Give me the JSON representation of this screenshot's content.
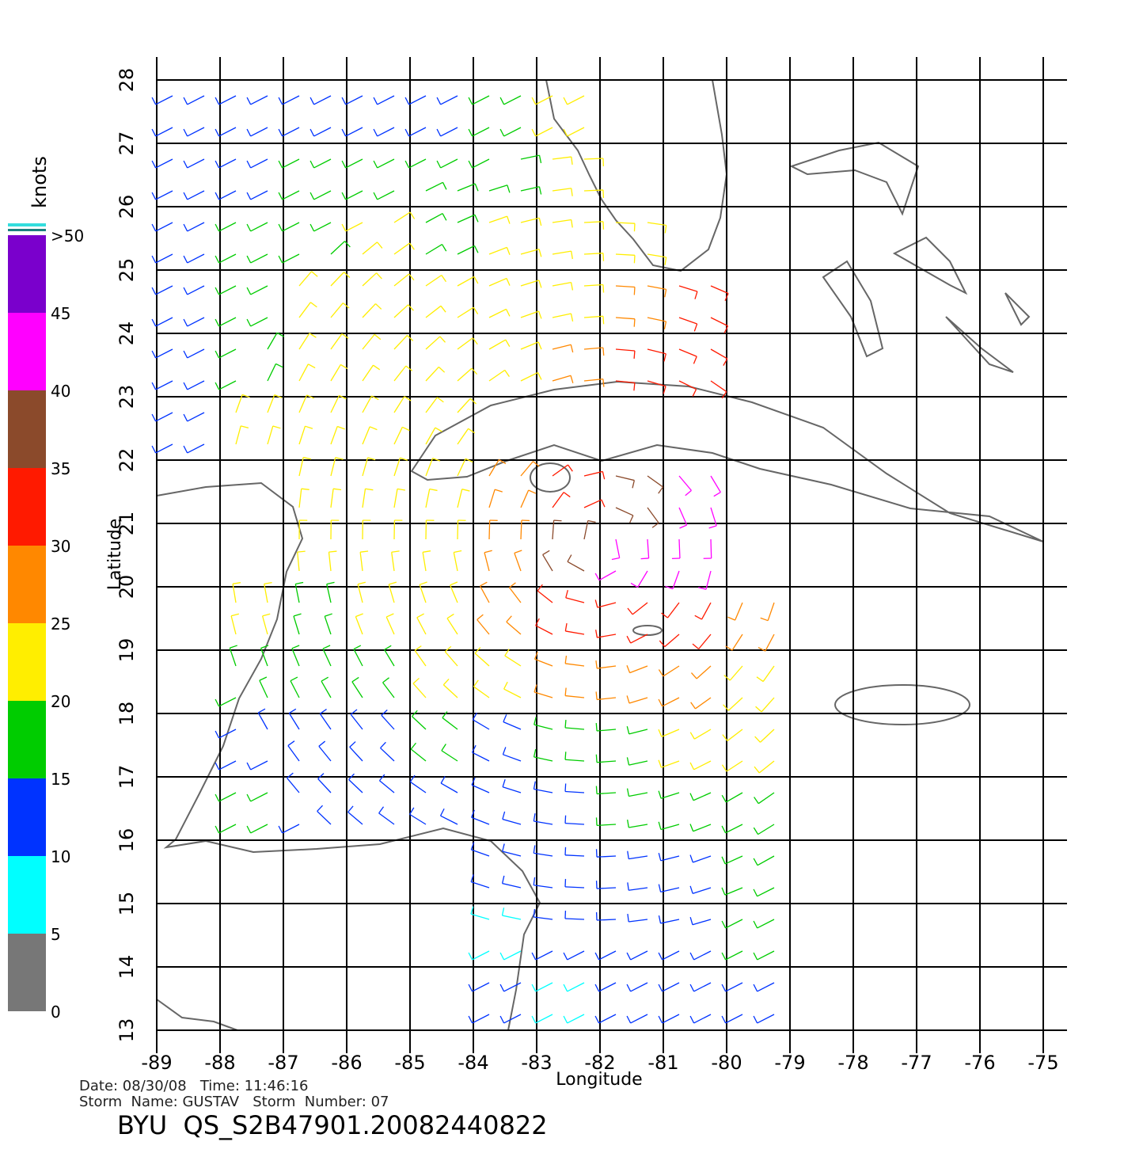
{
  "chart_data": {
    "type": "wind-map",
    "title": "BYU  QS_S2B47901.20082440822",
    "date_line": "Date: 08/30/08   Time: 11:46:16",
    "storm_line": "Storm  Name: GUSTAV   Storm  Number: 07",
    "x_label": "Longitude",
    "y_label": "Latitude",
    "xlim": [
      -89,
      -75
    ],
    "ylim": [
      13,
      28
    ],
    "xticks": [
      -89,
      -88,
      -87,
      -86,
      -85,
      -84,
      -83,
      -82,
      -81,
      -80,
      -79,
      -78,
      -77,
      -76,
      -75
    ],
    "yticks": [
      13,
      14,
      15,
      16,
      17,
      18,
      19,
      20,
      21,
      22,
      23,
      24,
      25,
      26,
      27,
      28
    ],
    "grid": true,
    "colorbar": {
      "label": "knots",
      "lim": [
        0,
        50
      ],
      "ticks": [
        0,
        5,
        10,
        15,
        20,
        25,
        30,
        35,
        40,
        45,
        {
          "value": 50,
          "label": ">50"
        }
      ],
      "colors": [
        "#777777",
        "#00ffff",
        "#0033ff",
        "#00cc00",
        "#ffee00",
        "#ff8800",
        "#ff1a00",
        "#8b4a2b",
        "#ff00ff",
        "#7a00cc"
      ]
    },
    "cell_lons": [
      -88.5,
      -87.5,
      -86.5,
      -85.5,
      -84.5,
      -83.5,
      -82.5,
      -81.5,
      -80.5,
      -79.5
    ],
    "cell_lats": [
      27.5,
      26.5,
      25.5,
      24.5,
      23.5,
      22.5,
      21.5,
      20.5,
      19.5,
      18.5,
      17.5,
      16.5,
      15.5,
      14.5,
      13.5
    ],
    "wind_speed": [
      [
        12,
        12,
        12,
        14,
        14,
        17,
        21,
        null,
        null,
        null
      ],
      [
        12,
        13,
        16,
        17,
        18,
        18,
        21,
        null,
        null,
        null
      ],
      [
        12,
        16,
        18,
        20,
        18,
        20,
        21,
        20,
        null,
        null
      ],
      [
        13,
        17,
        20,
        22,
        20,
        20,
        22,
        28,
        30,
        null
      ],
      [
        14,
        17,
        20,
        20,
        21,
        24,
        28,
        31,
        30,
        null
      ],
      [
        12,
        22,
        21,
        22,
        20,
        null,
        null,
        null,
        null,
        null
      ],
      [
        null,
        null,
        22,
        21,
        22,
        25,
        33,
        38,
        42,
        null
      ],
      [
        null,
        null,
        21,
        22,
        24,
        28,
        35,
        42,
        44,
        null
      ],
      [
        null,
        20,
        19,
        21,
        24,
        26,
        32,
        34,
        30,
        25
      ],
      [
        null,
        18,
        18,
        18,
        20,
        24,
        26,
        28,
        26,
        24
      ],
      [
        null,
        13,
        14,
        14,
        16,
        14,
        16,
        19,
        20,
        22
      ],
      [
        null,
        17,
        13,
        12,
        13,
        12,
        14,
        16,
        16,
        18
      ],
      [
        null,
        null,
        null,
        null,
        null,
        11,
        10,
        12,
        14,
        16
      ],
      [
        null,
        null,
        null,
        null,
        null,
        9,
        10,
        12,
        14,
        16
      ],
      [
        null,
        null,
        null,
        null,
        null,
        10,
        9,
        13,
        13,
        14
      ]
    ]
  }
}
